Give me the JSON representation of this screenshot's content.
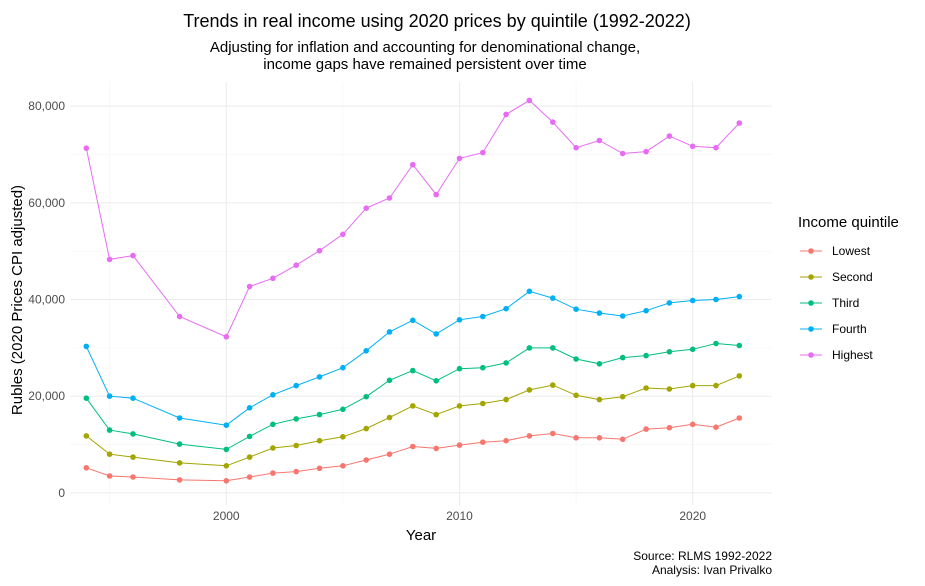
{
  "chart_data": {
    "type": "line",
    "title": "Trends in real income using 2020 prices by quintile (1992-2022)",
    "subtitle_lines": [
      "Adjusting for inflation and accounting for denominational change,",
      "income gaps have remained persistent over time"
    ],
    "xlabel": "Year",
    "ylabel": "Rubles (2020 Prices CPI adjusted)",
    "xlim": [
      1993.3,
      2023.4
    ],
    "ylim": [
      -2500,
      85000
    ],
    "x_ticks": [
      2000,
      2010,
      2020
    ],
    "x_tick_labels": [
      "2000",
      "2010",
      "2020"
    ],
    "y_ticks": [
      0,
      20000,
      40000,
      60000,
      80000
    ],
    "y_tick_labels": [
      "0",
      "20,000",
      "40,000",
      "60,000",
      "80,000"
    ],
    "grid": true,
    "legend": {
      "title": "Income quintile",
      "position": "right"
    },
    "x": [
      1994,
      1995,
      1996,
      1998,
      2000,
      2001,
      2002,
      2003,
      2004,
      2005,
      2006,
      2007,
      2008,
      2009,
      2010,
      2011,
      2012,
      2013,
      2014,
      2015,
      2016,
      2017,
      2018,
      2019,
      2020,
      2021,
      2022
    ],
    "series": [
      {
        "name": "Lowest",
        "color": "#F8766D",
        "values": [
          5200,
          3500,
          3300,
          2700,
          2500,
          3300,
          4100,
          4400,
          5100,
          5600,
          6800,
          8000,
          9600,
          9200,
          9900,
          10500,
          10800,
          11800,
          12300,
          11400,
          11400,
          11100,
          13200,
          13500,
          14200,
          13600,
          15500
        ]
      },
      {
        "name": "Second",
        "color": "#A3A500",
        "values": [
          11800,
          8000,
          7400,
          6200,
          5600,
          7400,
          9300,
          9800,
          10800,
          11600,
          13300,
          15600,
          18000,
          16200,
          18000,
          18500,
          19300,
          21300,
          22300,
          20200,
          19300,
          19900,
          21700,
          21500,
          22200,
          22200,
          24200
        ]
      },
      {
        "name": "Third",
        "color": "#00BF7D",
        "values": [
          19600,
          13000,
          12200,
          10100,
          9000,
          11700,
          14200,
          15300,
          16200,
          17300,
          19900,
          23300,
          25300,
          23200,
          25700,
          25900,
          26900,
          30000,
          30000,
          27700,
          26700,
          28000,
          28400,
          29200,
          29700,
          30900,
          30500
        ]
      },
      {
        "name": "Fourth",
        "color": "#00B0F6",
        "values": [
          30300,
          20000,
          19600,
          15500,
          14000,
          17600,
          20300,
          22200,
          24000,
          25900,
          29400,
          33300,
          35700,
          32900,
          35800,
          36500,
          38100,
          41700,
          40300,
          38000,
          37200,
          36600,
          37700,
          39300,
          39800,
          40000,
          40600
        ]
      },
      {
        "name": "Highest",
        "color": "#E76BF3",
        "values": [
          71300,
          48300,
          49100,
          36500,
          32300,
          42700,
          44400,
          47100,
          50100,
          53500,
          58900,
          61000,
          67900,
          61700,
          69200,
          70400,
          78300,
          81200,
          76700,
          71400,
          72900,
          70200,
          70600,
          73800,
          71700,
          71400,
          76500
        ]
      }
    ]
  },
  "caption_lines": [
    "Source: RLMS 1992-2022",
    "Analysis: Ivan Privalko"
  ]
}
